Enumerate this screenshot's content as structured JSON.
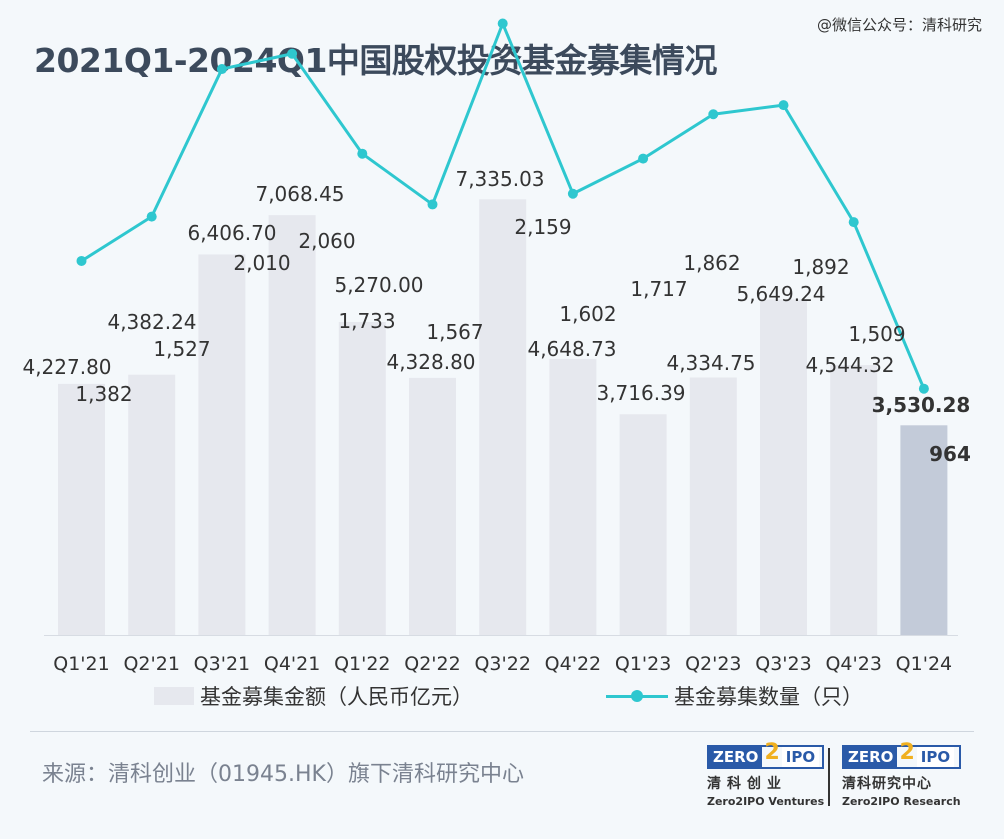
{
  "watermark": "@微信公众号：清科研究",
  "title": "2021Q1-2024Q1中国股权投资基金募集情况",
  "chart_data": {
    "type": "bar",
    "title": "2021Q1-2024Q1中国股权投资基金募集情况",
    "categories": [
      "Q1'21",
      "Q2'21",
      "Q3'21",
      "Q4'21",
      "Q1'22",
      "Q2'22",
      "Q3'22",
      "Q4'22",
      "Q1'23",
      "Q2'23",
      "Q3'23",
      "Q4'23",
      "Q1'24"
    ],
    "series": [
      {
        "name": "基金募集金额（人民币亿元）",
        "type": "bar",
        "values": [
          4227.8,
          4382.24,
          6406.7,
          7068.45,
          5270.0,
          4328.8,
          7335.03,
          4648.73,
          3716.39,
          4334.75,
          5649.24,
          4544.32,
          3530.28
        ],
        "labels": [
          "4,227.80",
          "4,382.24",
          "6,406.70",
          "7,068.45",
          "5,270.00",
          "4,328.80",
          "7,335.03",
          "4,648.73",
          "3,716.39",
          "4,334.75",
          "5,649.24",
          "4,544.32",
          "3,530.28"
        ]
      },
      {
        "name": "基金募集数量（只）",
        "type": "line",
        "values": [
          1382,
          1527,
          2010,
          2060,
          1733,
          1567,
          2159,
          1602,
          1717,
          1862,
          1892,
          1509,
          964
        ],
        "labels": [
          "1,382",
          "1,527",
          "2,010",
          "2,060",
          "1,733",
          "1,567",
          "2,159",
          "1,602",
          "1,717",
          "1,862",
          "1,892",
          "1,509",
          "964"
        ]
      }
    ],
    "bar_color": "#e6e8ee",
    "highlight_bar_color": "#c3cbd9",
    "line_color": "#2ec7cf",
    "legend_position": "bottom",
    "grid": false
  },
  "legend": {
    "bar_label": "基金募集金额（人民币亿元）",
    "line_label": "基金募集数量（只）"
  },
  "source": "来源：清科创业（01945.HK）旗下清科研究中心",
  "logos": [
    {
      "zero": "ZERO",
      "two": "2",
      "ipo": "IPO",
      "cn": "清科创业",
      "en": "Zero2IPO Ventures"
    },
    {
      "zero": "ZERO",
      "two": "2",
      "ipo": "IPO",
      "cn": "清科研究中心",
      "en": "Zero2IPO Research"
    }
  ]
}
